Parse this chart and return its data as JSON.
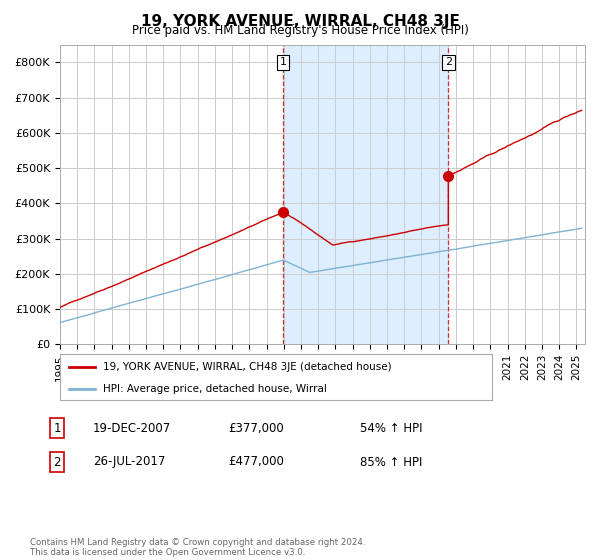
{
  "title": "19, YORK AVENUE, WIRRAL, CH48 3JE",
  "subtitle": "Price paid vs. HM Land Registry's House Price Index (HPI)",
  "xlim_start": 1995.0,
  "xlim_end": 2025.5,
  "ylim": [
    0,
    850000
  ],
  "yticks": [
    0,
    100000,
    200000,
    300000,
    400000,
    500000,
    600000,
    700000,
    800000
  ],
  "ytick_labels": [
    "£0",
    "£100K",
    "£200K",
    "£300K",
    "£400K",
    "£500K",
    "£600K",
    "£700K",
    "£800K"
  ],
  "transaction1_date": 2007.96,
  "transaction1_price": 377000,
  "transaction1_label": "1",
  "transaction2_date": 2017.56,
  "transaction2_price": 477000,
  "transaction2_label": "2",
  "red_line_color": "#cc0000",
  "blue_line_color": "#7fb3d3",
  "shaded_color": "#ddeeff",
  "legend_red_label": "19, YORK AVENUE, WIRRAL, CH48 3JE (detached house)",
  "legend_blue_label": "HPI: Average price, detached house, Wirral",
  "footnote": "Contains HM Land Registry data © Crown copyright and database right 2024.\nThis data is licensed under the Open Government Licence v3.0.",
  "background_color": "#ffffff",
  "grid_color": "#cccccc",
  "trans1_date_str": "19-DEC-2007",
  "trans1_price_str": "£377,000",
  "trans1_hpi_str": "54% ↑ HPI",
  "trans2_date_str": "26-JUL-2017",
  "trans2_price_str": "£477,000",
  "trans2_hpi_str": "85% ↑ HPI"
}
